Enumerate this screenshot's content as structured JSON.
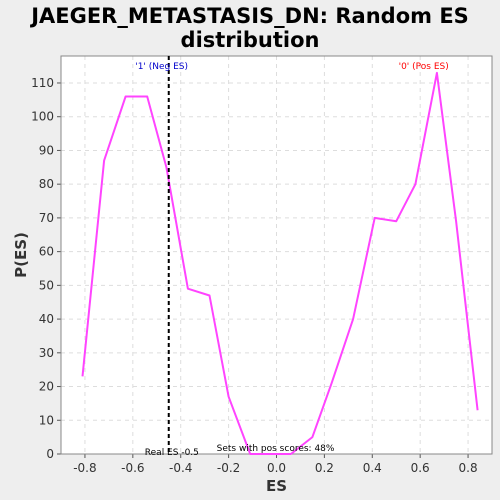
{
  "chart_data": {
    "type": "line",
    "title_line1": "JAEGER_METASTASIS_DN: Random ES",
    "title_line2": "distribution",
    "xlabel": "ES",
    "ylabel": "P(ES)",
    "xlim": [
      -0.9,
      0.9
    ],
    "ylim": [
      0,
      118
    ],
    "x_ticks": [
      -0.8,
      -0.6,
      -0.4,
      -0.2,
      0.0,
      0.2,
      0.4,
      0.6,
      0.8
    ],
    "x_tick_labels": [
      "-0.8",
      "-0.6",
      "-0.4",
      "-0.2",
      "0.0",
      "0.2",
      "0.4",
      "0.6",
      "0.8"
    ],
    "y_ticks": [
      0,
      10,
      20,
      30,
      40,
      50,
      60,
      70,
      80,
      90,
      100,
      110
    ],
    "y_tick_labels": [
      "0",
      "10",
      "20",
      "30",
      "40",
      "50",
      "60",
      "70",
      "80",
      "90",
      "100",
      "110"
    ],
    "grid": true,
    "series": [
      {
        "color": "#ff44ff",
        "x": [
          -0.81,
          -0.72,
          -0.63,
          -0.54,
          -0.46,
          -0.37,
          -0.28,
          -0.2,
          -0.11,
          -0.03,
          0.06,
          0.15,
          0.23,
          0.32,
          0.41,
          0.5,
          0.58,
          0.67,
          0.75,
          0.84
        ],
        "y": [
          23,
          87,
          106,
          106,
          85,
          49,
          47,
          17,
          0,
          0,
          0,
          5,
          21,
          40,
          70,
          69,
          80,
          113,
          69,
          13
        ]
      }
    ],
    "real_es_marker": {
      "x": -0.45,
      "label": "Real ES -0.5",
      "color": "#000000"
    },
    "annotations": {
      "neg_label": "'1' (Neg ES)",
      "neg_color": "#0000cc",
      "pos_label": "'0' (Pos ES)",
      "pos_color": "#ff0000",
      "pos_scores": "Sets with pos scores: 48%"
    },
    "colors": {
      "plot_background": "#ffffff",
      "page_background": "#eeeeee",
      "grid": "#dddddd"
    }
  }
}
